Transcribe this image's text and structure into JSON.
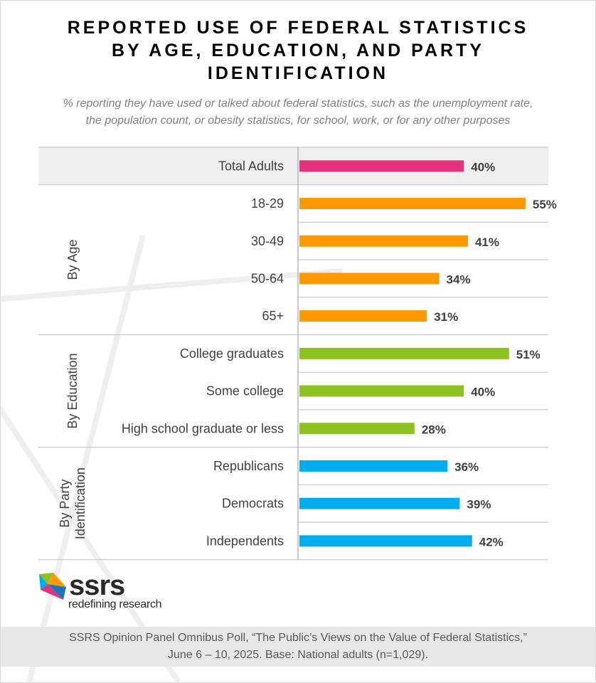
{
  "title_line1": "REPORTED USE OF FEDERAL STATISTICS",
  "title_line2": "BY AGE, EDUCATION, AND PARTY",
  "title_line3": "IDENTIFICATION",
  "subtitle_line1": "% reporting they have used or talked about federal statistics, such as the unemployment rate,",
  "subtitle_line2": "the population count, or obesity statistics, for school, work, or for any other purposes",
  "logo": {
    "wordmark": "ssrs",
    "tagline": "redefining research"
  },
  "footer_line1": "SSRS Opinion Panel Omnibus Poll, “The Public’s Views on the Value of Federal Statistics,”",
  "footer_line2": "June 6 – 10, 2025. Base: National adults (n=1,029).",
  "chart_data": {
    "type": "bar",
    "orientation": "horizontal",
    "categories": [
      "Total Adults",
      "18-29",
      "30-49",
      "50-64",
      "65+",
      "College graduates",
      "Some college",
      "High school graduate or less",
      "Republicans",
      "Democrats",
      "Independents"
    ],
    "values": [
      40,
      55,
      41,
      34,
      31,
      51,
      40,
      28,
      36,
      39,
      42
    ],
    "value_labels": [
      "40%",
      "55%",
      "41%",
      "34%",
      "31%",
      "51%",
      "40%",
      "28%",
      "36%",
      "39%",
      "42%"
    ],
    "groups": [
      {
        "name": "",
        "start": 0,
        "end": 0,
        "color": "#e6317f"
      },
      {
        "name": "By Age",
        "start": 1,
        "end": 4,
        "color": "#ff9900"
      },
      {
        "name": "By Education",
        "start": 5,
        "end": 7,
        "color": "#8dc21f"
      },
      {
        "name": "By Party Identification",
        "name_lines": [
          "By Party",
          "Identification"
        ],
        "start": 8,
        "end": 10,
        "color": "#00aeef"
      }
    ],
    "xlim": [
      0,
      60
    ],
    "unit": "%"
  }
}
